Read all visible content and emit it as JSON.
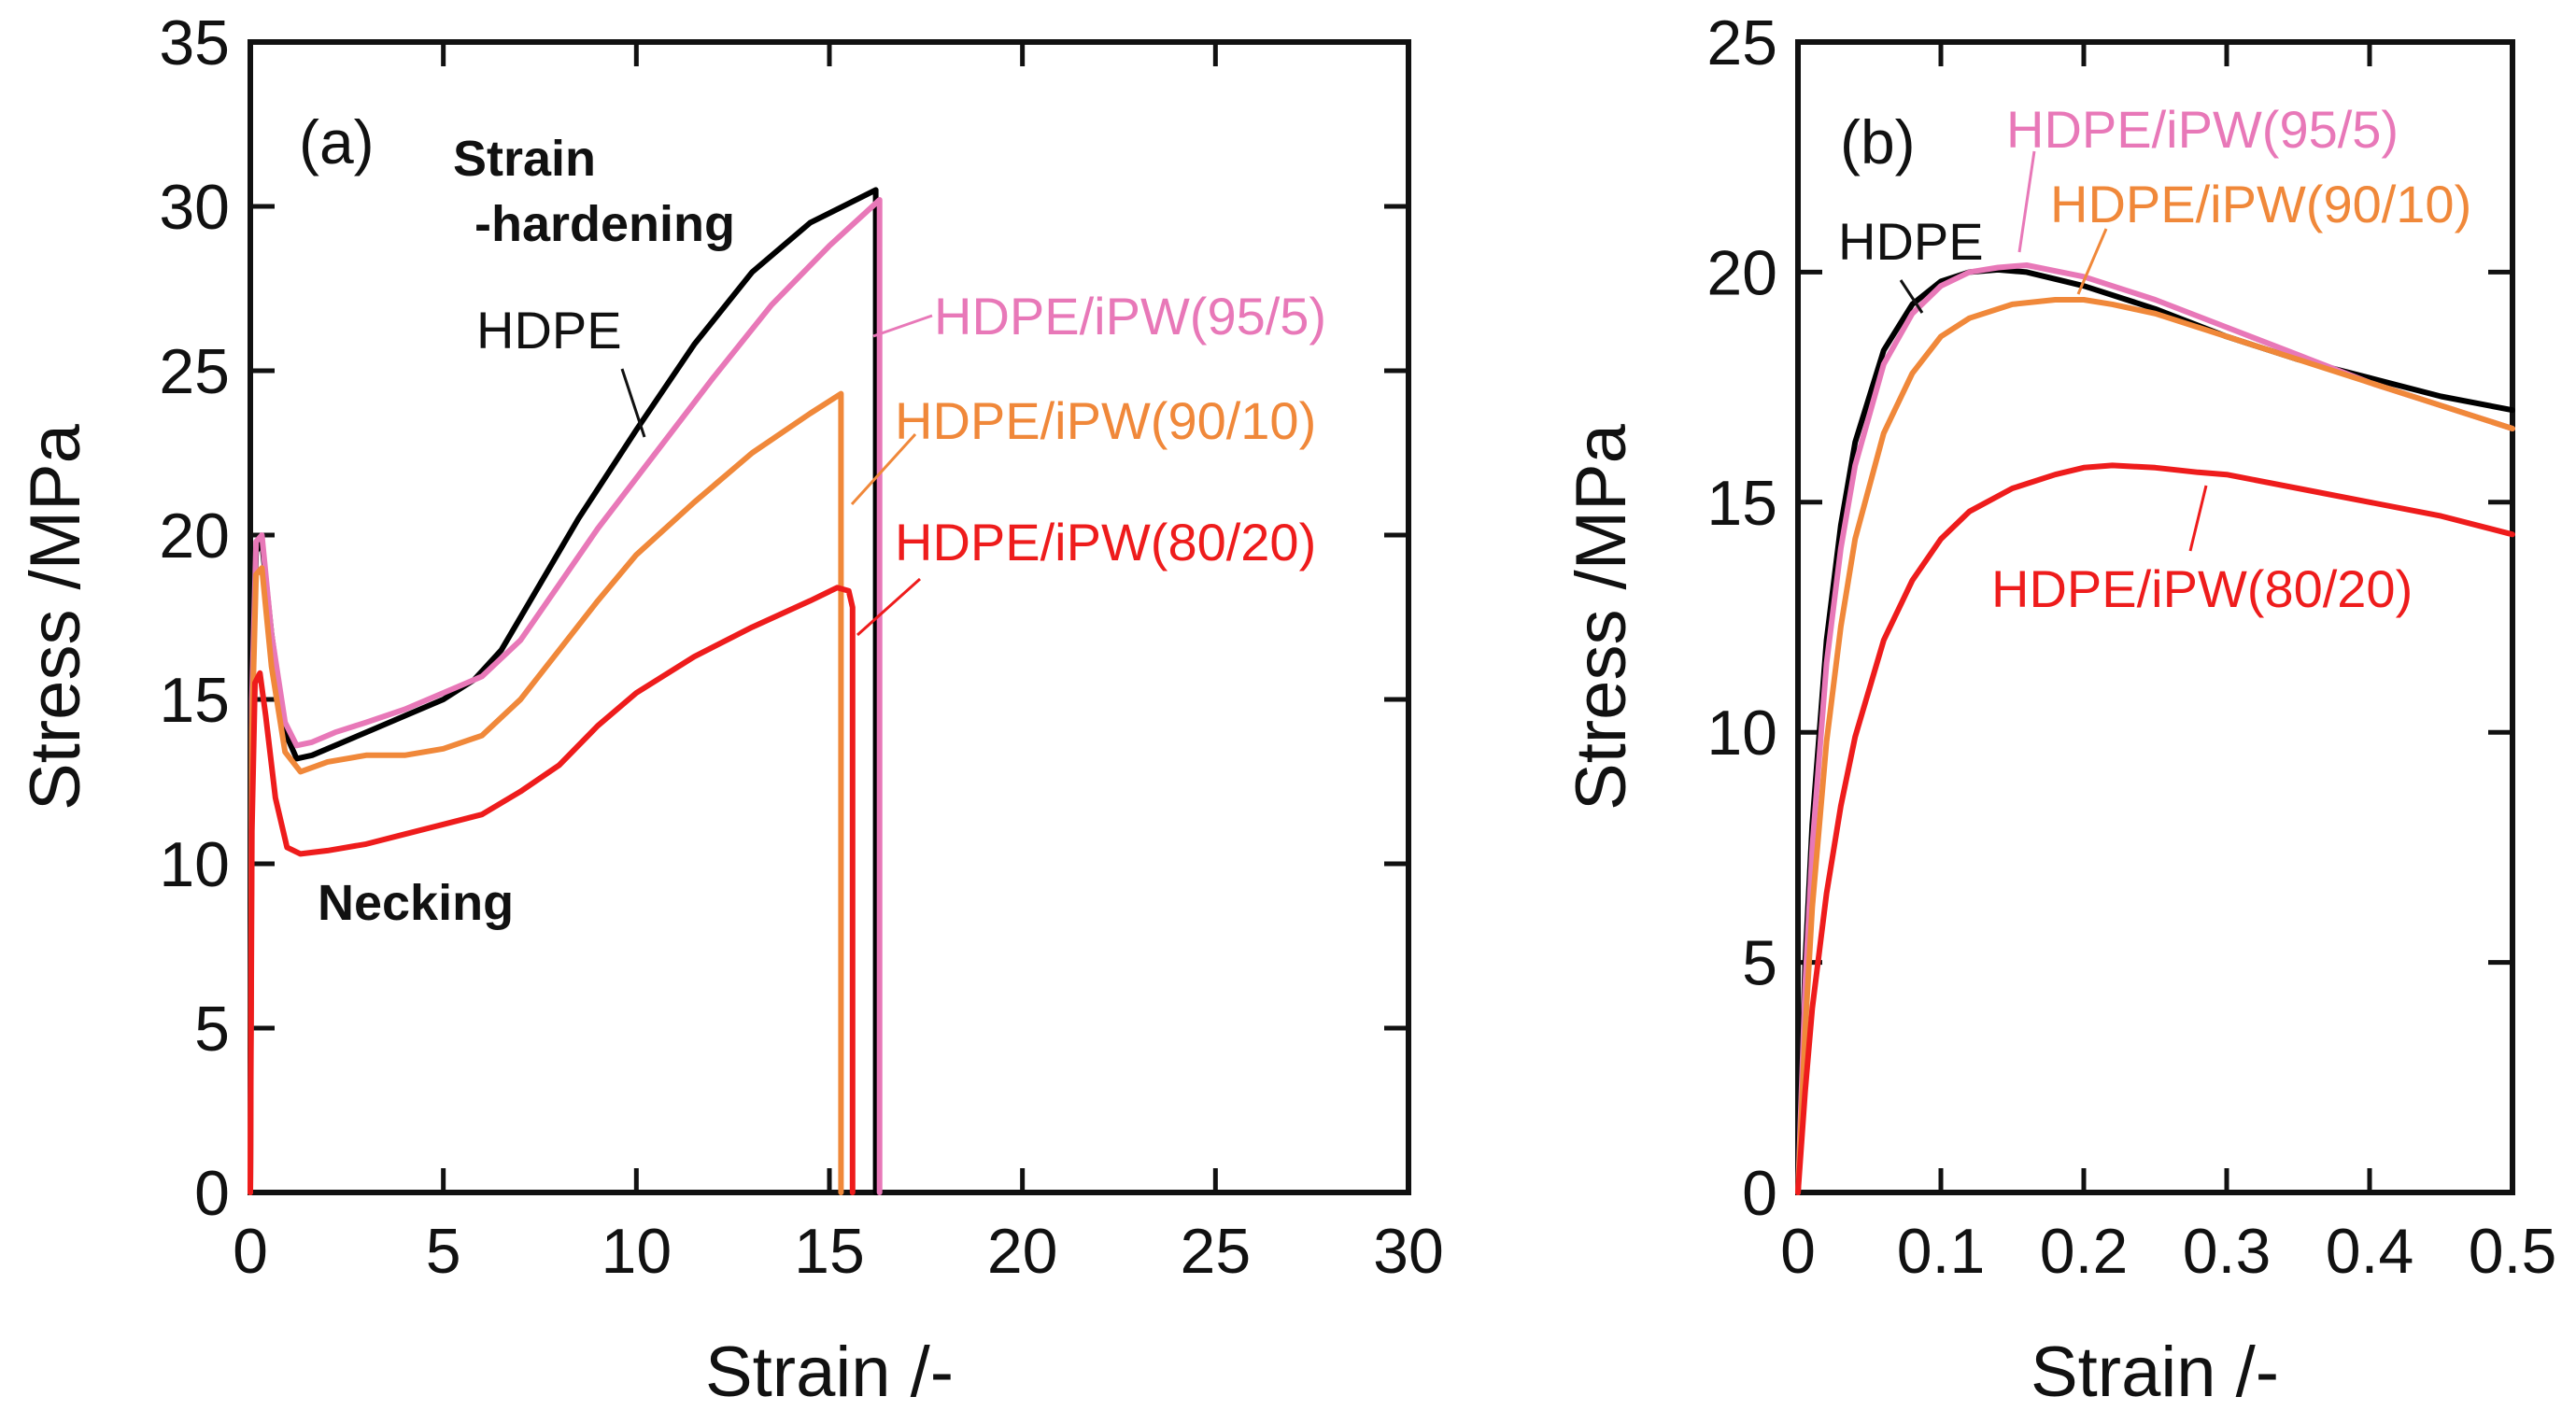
{
  "chart_data": [
    {
      "panel": "(a)",
      "type": "line",
      "xlabel": "Strain /-",
      "ylabel": "Stress /MPa",
      "xlim": [
        0,
        30
      ],
      "ylim": [
        0,
        35
      ],
      "xticks": [
        "0",
        "5",
        "10",
        "15",
        "20",
        "25",
        "30"
      ],
      "yticks": [
        "0",
        "5",
        "10",
        "15",
        "20",
        "25",
        "30",
        "35"
      ],
      "series": [
        {
          "name": "HDPE",
          "color": "#000000",
          "x": [
            0,
            0.04,
            0.15,
            0.3,
            0.55,
            0.9,
            1.2,
            1.6,
            2.2,
            3,
            4,
            5,
            5.8,
            6.5,
            7.5,
            8.5,
            10,
            11.5,
            13,
            14.5,
            16.2,
            16.2,
            16.2
          ],
          "y": [
            0,
            15,
            19.5,
            19.8,
            17,
            14,
            13.2,
            13.3,
            13.6,
            14,
            14.5,
            15,
            15.6,
            16.5,
            18.5,
            20.5,
            23.2,
            25.8,
            28.0,
            29.5,
            30.5,
            15,
            0
          ]
        },
        {
          "name": "HDPE/iPW(95/5)",
          "color": "#e878b8",
          "x": [
            0,
            0.04,
            0.15,
            0.3,
            0.55,
            0.9,
            1.2,
            1.6,
            2.2,
            3,
            4,
            5,
            6,
            7,
            8,
            9,
            10.5,
            12,
            13.5,
            15,
            16.3,
            16.3,
            16.3
          ],
          "y": [
            0,
            15,
            19.8,
            20.0,
            17,
            14.3,
            13.6,
            13.7,
            14,
            14.3,
            14.7,
            15.2,
            15.7,
            16.8,
            18.5,
            20.2,
            22.5,
            24.8,
            27.0,
            28.8,
            30.2,
            15,
            0
          ]
        },
        {
          "name": "HDPE/iPW(90/10)",
          "color": "#f0883a",
          "x": [
            0,
            0.04,
            0.15,
            0.3,
            0.55,
            0.9,
            1.3,
            2,
            3,
            4,
            5,
            6,
            7,
            8,
            9,
            10,
            11.5,
            13,
            14.5,
            15.3,
            15.3,
            15.3
          ],
          "y": [
            0,
            14,
            18.8,
            19.0,
            16,
            13.4,
            12.8,
            13.1,
            13.3,
            13.3,
            13.5,
            13.9,
            15.0,
            16.5,
            18.0,
            19.4,
            21.0,
            22.5,
            23.7,
            24.3,
            12,
            0
          ]
        },
        {
          "name": "HDPE/iPW(80/20)",
          "color": "#ee1c1c",
          "x": [
            0,
            0.04,
            0.12,
            0.25,
            0.4,
            0.65,
            0.95,
            1.3,
            2,
            3,
            4,
            5,
            6,
            7,
            8,
            9,
            10,
            11.5,
            13,
            14.5,
            15.2,
            15.5,
            15.6,
            15.6,
            15.6
          ],
          "y": [
            0,
            11,
            15.5,
            15.8,
            14.5,
            12,
            10.5,
            10.3,
            10.4,
            10.6,
            10.9,
            11.2,
            11.5,
            12.2,
            13.0,
            14.2,
            15.2,
            16.3,
            17.2,
            18.0,
            18.4,
            18.3,
            17.8,
            9,
            0
          ]
        }
      ],
      "annotations": [
        {
          "text": "Strain",
          "style": "bold"
        },
        {
          "text": "-hardening",
          "style": "bold"
        },
        {
          "text": "Necking",
          "style": "bold"
        },
        {
          "text": "HDPE",
          "color": "#000000"
        },
        {
          "text": "HDPE/iPW(95/5)",
          "color": "#e878b8"
        },
        {
          "text": "HDPE/iPW(90/10)",
          "color": "#f0883a"
        },
        {
          "text": "HDPE/iPW(80/20)",
          "color": "#ee1c1c"
        }
      ]
    },
    {
      "panel": "(b)",
      "type": "line",
      "xlabel": "Strain /-",
      "ylabel": "Stress /MPa",
      "xlim": [
        0,
        0.5
      ],
      "ylim": [
        0,
        25
      ],
      "xticks": [
        "0",
        "0.1",
        "0.2",
        "0.3",
        "0.4",
        "0.5"
      ],
      "yticks": [
        "0",
        "5",
        "10",
        "15",
        "20",
        "25"
      ],
      "series": [
        {
          "name": "HDPE",
          "color": "#000000",
          "x": [
            0,
            0.005,
            0.01,
            0.02,
            0.03,
            0.04,
            0.06,
            0.08,
            0.1,
            0.12,
            0.14,
            0.16,
            0.2,
            0.25,
            0.3,
            0.35,
            0.4,
            0.45,
            0.5
          ],
          "y": [
            0,
            5,
            8,
            12,
            14.5,
            16.3,
            18.3,
            19.3,
            19.8,
            20.0,
            20.05,
            20.0,
            19.7,
            19.2,
            18.6,
            18.1,
            17.7,
            17.3,
            17.0
          ]
        },
        {
          "name": "HDPE/iPW(95/5)",
          "color": "#e878b8",
          "x": [
            0,
            0.005,
            0.01,
            0.02,
            0.03,
            0.04,
            0.06,
            0.08,
            0.1,
            0.12,
            0.14,
            0.16,
            0.2,
            0.25,
            0.3,
            0.35,
            0.4,
            0.45,
            0.5
          ],
          "y": [
            0,
            4.5,
            7.5,
            11.5,
            14.0,
            15.8,
            18.0,
            19.1,
            19.7,
            20.0,
            20.1,
            20.15,
            19.9,
            19.4,
            18.8,
            18.2,
            17.6,
            17.1,
            16.6
          ]
        },
        {
          "name": "HDPE/iPW(90/10)",
          "color": "#f0883a",
          "x": [
            0,
            0.005,
            0.01,
            0.02,
            0.03,
            0.04,
            0.06,
            0.08,
            0.1,
            0.12,
            0.15,
            0.18,
            0.2,
            0.22,
            0.25,
            0.3,
            0.35,
            0.4,
            0.45,
            0.5
          ],
          "y": [
            0,
            3.5,
            6.2,
            9.8,
            12.3,
            14.2,
            16.5,
            17.8,
            18.6,
            19.0,
            19.3,
            19.4,
            19.4,
            19.3,
            19.1,
            18.6,
            18.1,
            17.6,
            17.1,
            16.6
          ]
        },
        {
          "name": "HDPE/iPW(80/20)",
          "color": "#ee1c1c",
          "x": [
            0,
            0.005,
            0.01,
            0.02,
            0.03,
            0.04,
            0.06,
            0.08,
            0.1,
            0.12,
            0.15,
            0.18,
            0.2,
            0.22,
            0.25,
            0.28,
            0.3,
            0.35,
            0.4,
            0.45,
            0.5
          ],
          "y": [
            0,
            2.2,
            4.0,
            6.5,
            8.4,
            9.9,
            12.0,
            13.3,
            14.2,
            14.8,
            15.3,
            15.6,
            15.75,
            15.8,
            15.75,
            15.65,
            15.6,
            15.3,
            15.0,
            14.7,
            14.3
          ]
        }
      ],
      "annotations": [
        {
          "text": "HDPE",
          "color": "#000000"
        },
        {
          "text": "HDPE/iPW(95/5)",
          "color": "#e878b8"
        },
        {
          "text": "HDPE/iPW(90/10)",
          "color": "#f0883a"
        },
        {
          "text": "HDPE/iPW(80/20)",
          "color": "#ee1c1c"
        }
      ]
    }
  ]
}
